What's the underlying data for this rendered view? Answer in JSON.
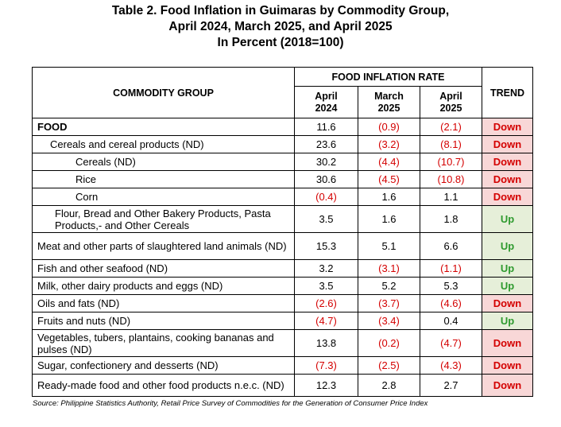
{
  "title": {
    "line1": "Table 2.  Food Inflation in Guimaras by Commodity Group,",
    "line2": "April 2024, March 2025, and April 2025",
    "line3": "In Percent (2018=100)"
  },
  "header": {
    "commodity_group": "COMMODITY GROUP",
    "food_inflation_rate": "FOOD INFLATION RATE",
    "trend": "TREND",
    "col1": "April\n2024",
    "col2": "March\n2025",
    "col3": "April\n2025"
  },
  "rows": [
    {
      "label": "FOOD",
      "v1": "11.6",
      "v2": "(0.9)",
      "v3": "(2.1)",
      "trend": "Down"
    },
    {
      "label": "Cereals and cereal products (ND)",
      "v1": "23.6",
      "v2": "(3.2)",
      "v3": "(8.1)",
      "trend": "Down"
    },
    {
      "label": "Cereals (ND)",
      "v1": "30.2",
      "v2": "(4.4)",
      "v3": "(10.7)",
      "trend": "Down"
    },
    {
      "label": "Rice",
      "v1": "30.6",
      "v2": "(4.5)",
      "v3": "(10.8)",
      "trend": "Down"
    },
    {
      "label": "Corn",
      "v1": "(0.4)",
      "v2": "1.6",
      "v3": "1.1",
      "trend": "Down"
    },
    {
      "label": "Flour, Bread and Other Bakery Products, Pasta Products,- and Other Cereals",
      "v1": "3.5",
      "v2": "1.6",
      "v3": "1.8",
      "trend": "Up"
    },
    {
      "label": "Meat and other parts of slaughtered land animals (ND)",
      "v1": "15.3",
      "v2": "5.1",
      "v3": "6.6",
      "trend": "Up"
    },
    {
      "label": "Fish and other seafood (ND)",
      "v1": "3.2",
      "v2": "(3.1)",
      "v3": "(1.1)",
      "trend": "Up"
    },
    {
      "label": "Milk, other dairy products and eggs (ND)",
      "v1": "3.5",
      "v2": "5.2",
      "v3": "5.3",
      "trend": "Up"
    },
    {
      "label": "Oils and fats (ND)",
      "v1": "(2.6)",
      "v2": "(3.7)",
      "v3": "(4.6)",
      "trend": "Down"
    },
    {
      "label": "Fruits and nuts (ND)",
      "v1": "(4.7)",
      "v2": "(3.4)",
      "v3": "0.4",
      "trend": "Up"
    },
    {
      "label": "Vegetables, tubers, plantains, cooking bananas and pulses (ND)",
      "v1": "13.8",
      "v2": "(0.2)",
      "v3": "(4.7)",
      "trend": "Down"
    },
    {
      "label": "Sugar, confectionery and desserts (ND)",
      "v1": "(7.3)",
      "v2": "(2.5)",
      "v3": "(4.3)",
      "trend": "Down"
    },
    {
      "label": "Ready-made food and other food products n.e.c. (ND)",
      "v1": "12.3",
      "v2": "2.8",
      "v3": "2.7",
      "trend": "Down"
    }
  ],
  "source": "Source: Philippine Statistics Authority, Retail Price Survey of Commodities for the Generation of Consumer Price Index"
}
